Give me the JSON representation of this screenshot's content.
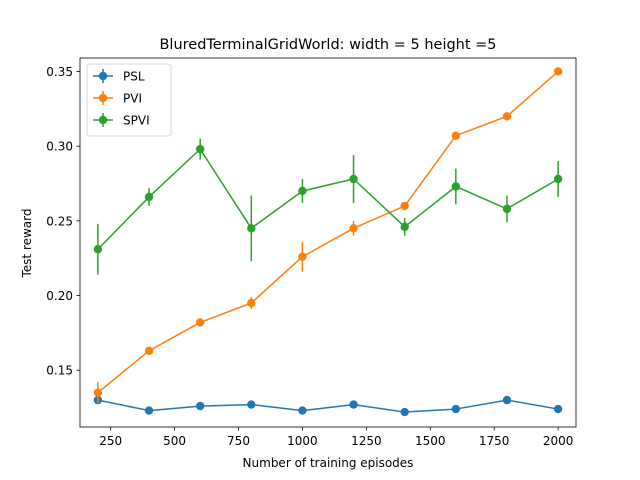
{
  "chart_data": {
    "type": "line",
    "title": "BluredTerminalGridWorld: width = 5 height =5",
    "xlabel": "Number of training episodes",
    "ylabel": "Test reward",
    "xlim": [
      130,
      2070
    ],
    "ylim": [
      0.112,
      0.359
    ],
    "xticks": [
      250,
      500,
      750,
      1000,
      1250,
      1500,
      1750,
      2000
    ],
    "xtick_labels": [
      "250",
      "500",
      "750",
      "1000",
      "1250",
      "1500",
      "1750",
      "2000"
    ],
    "yticks": [
      0.15,
      0.2,
      0.25,
      0.3,
      0.35
    ],
    "ytick_labels": [
      "0.15",
      "0.20",
      "0.25",
      "0.30",
      "0.35"
    ],
    "grid": false,
    "legend_position": "top-left",
    "x": [
      200,
      400,
      600,
      800,
      1000,
      1200,
      1400,
      1600,
      1800,
      2000
    ],
    "series": [
      {
        "name": "PSL",
        "color": "#1f77b4",
        "values": [
          0.13,
          0.123,
          0.126,
          0.127,
          0.123,
          0.127,
          0.122,
          0.124,
          0.13,
          0.124
        ],
        "errors": [
          0.001,
          0.001,
          0.001,
          0.001,
          0.001,
          0.001,
          0.001,
          0.001,
          0.002,
          0.001
        ]
      },
      {
        "name": "PVI",
        "color": "#ff7f0e",
        "values": [
          0.135,
          0.163,
          0.182,
          0.195,
          0.226,
          0.245,
          0.26,
          0.307,
          0.32,
          0.35
        ],
        "errors": [
          0.007,
          0.001,
          0.001,
          0.004,
          0.01,
          0.005,
          0.001,
          0.001,
          0.001,
          0.001
        ]
      },
      {
        "name": "SPVI",
        "color": "#2ca02c",
        "values": [
          0.231,
          0.266,
          0.298,
          0.245,
          0.27,
          0.278,
          0.246,
          0.273,
          0.258,
          0.278
        ],
        "errors": [
          0.017,
          0.006,
          0.007,
          0.022,
          0.008,
          0.016,
          0.006,
          0.012,
          0.009,
          0.012
        ]
      }
    ]
  }
}
